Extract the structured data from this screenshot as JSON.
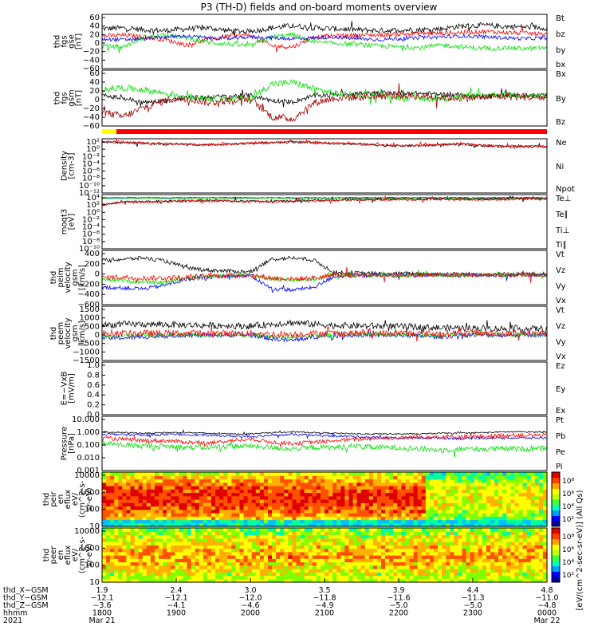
{
  "title": "P3 (TH-D) fields and on-board moments overview",
  "colors": {
    "black": "#000000",
    "red": "#ff0000",
    "green": "#00e000",
    "blue": "#0000ff",
    "darkred": "#a00000",
    "yellow": "#ffff00"
  },
  "chart_data": [
    {
      "id": "fgs_gse",
      "type": "line",
      "ylabel": [
        "thd",
        "fgs",
        "gse",
        "[nT]"
      ],
      "ticks": [
        "60",
        "40",
        "20",
        "0",
        "−20",
        "−40",
        "−60"
      ],
      "ylim": [
        -60,
        60
      ],
      "legend": [
        {
          "label": "Bt",
          "color": "black"
        },
        {
          "label": "bz",
          "color": "red"
        },
        {
          "label": "by",
          "color": "green"
        },
        {
          "label": "bx",
          "color": "blue"
        }
      ],
      "series": [
        {
          "color": "black",
          "base": [
            28,
            30,
            26,
            24,
            28,
            30,
            24,
            22,
            30,
            35,
            30,
            28,
            26,
            24,
            25,
            26,
            28,
            34,
            36,
            33,
            32,
            30
          ],
          "noise": 6
        },
        {
          "color": "red",
          "base": [
            12,
            14,
            10,
            4,
            -8,
            5,
            12,
            14,
            -10,
            -12,
            10,
            12,
            14,
            14,
            16,
            18,
            18,
            20,
            22,
            20,
            18,
            16
          ],
          "noise": 5
        },
        {
          "color": "green",
          "base": [
            -10,
            -12,
            10,
            14,
            8,
            -2,
            -6,
            -10,
            10,
            15,
            -2,
            -4,
            -6,
            -10,
            -12,
            -14,
            -8,
            -12,
            -16,
            -14,
            -16,
            -14
          ],
          "noise": 5
        },
        {
          "color": "blue",
          "base": [
            5,
            4,
            6,
            10,
            12,
            8,
            6,
            10,
            8,
            6,
            8,
            10,
            6,
            4,
            6,
            8,
            10,
            12,
            10,
            8,
            6,
            8
          ],
          "noise": 4
        }
      ]
    },
    {
      "id": "fgs_gsm",
      "type": "line",
      "ylabel": [
        "thd",
        "fgs",
        "gsm",
        "[nT]"
      ],
      "ticks": [
        "60",
        "40",
        "20",
        "0",
        "−20",
        "−40",
        "−60"
      ],
      "ylim": [
        -60,
        60
      ],
      "legend": [
        {
          "label": "Bx",
          "color": "black"
        },
        {
          "label": "By",
          "color": "darkred"
        },
        {
          "label": "Bz",
          "color": "green"
        }
      ],
      "series": [
        {
          "color": "black",
          "base": [
            5,
            0,
            -10,
            -5,
            0,
            2,
            4,
            6,
            -5,
            -8,
            5,
            8,
            10,
            10,
            12,
            10,
            8,
            6,
            4,
            6,
            6,
            4
          ],
          "noise": 5
        },
        {
          "color": "green",
          "base": [
            20,
            22,
            18,
            10,
            4,
            0,
            -2,
            0,
            30,
            34,
            20,
            10,
            6,
            4,
            2,
            0,
            -2,
            4,
            6,
            8,
            6,
            4
          ],
          "noise": 7
        },
        {
          "color": "darkred",
          "base": [
            -30,
            -40,
            -20,
            -5,
            0,
            -10,
            -5,
            -2,
            -40,
            -45,
            -10,
            0,
            2,
            4,
            6,
            4,
            2,
            0,
            2,
            4,
            2,
            0
          ],
          "noise": 8
        }
      ]
    },
    {
      "id": "density",
      "type": "line",
      "log": true,
      "ylabel": [
        "Density",
        "[cm-3]"
      ],
      "ticks": [
        "10²",
        "10⁰",
        "10⁻²",
        "10⁻⁴",
        "10⁻⁶",
        "10⁻⁸",
        "10⁻¹⁰",
        "10⁻¹²"
      ],
      "ylim": [
        -12,
        2
      ],
      "legend": [
        {
          "label": "Ne",
          "color": "red"
        },
        {
          "label": "Ni",
          "color": "black"
        },
        {
          "label": "Npot",
          "color": "blue"
        }
      ],
      "series": [
        {
          "color": "black",
          "base": [
            1.2,
            1.0,
            0.8,
            0.6,
            0.5,
            0.4,
            0.6,
            0.8,
            1.0,
            1.2,
            1.0,
            0.8,
            0.6,
            0.4,
            0.2,
            0.2,
            0.4,
            0.6,
            0.2,
            0.0,
            0.0,
            0.0
          ],
          "noise": 0.3
        },
        {
          "color": "red",
          "base": [
            1.3,
            1.1,
            0.9,
            0.7,
            0.6,
            0.5,
            0.7,
            0.9,
            1.1,
            1.3,
            1.1,
            0.9,
            0.7,
            0.5,
            0.3,
            0.3,
            0.5,
            0.7,
            0.3,
            0.1,
            0.1,
            0.1
          ],
          "noise": 0.3
        }
      ]
    },
    {
      "id": "temp",
      "type": "line",
      "log": true,
      "ylabel": [
        "moqt3",
        "[eV]"
      ],
      "ticks": [
        "10⁴",
        "10²",
        "10⁰",
        "10⁻²",
        "10⁻⁴",
        "10⁻⁶",
        "10⁻⁸",
        "10⁻¹⁰"
      ],
      "ylim": [
        -10,
        4
      ],
      "legend": [
        {
          "label": "Te⊥",
          "color": "red"
        },
        {
          "label": "Te∥",
          "color": "black"
        },
        {
          "label": "Ti⊥",
          "color": "blue"
        },
        {
          "label": "Ti∥",
          "color": "green"
        }
      ],
      "series": [
        {
          "color": "blue",
          "base": [
            3.2,
            3.2,
            3.2,
            3.2,
            3.2,
            3.2,
            3.2,
            3.2,
            3.2,
            3.2,
            3.2,
            3.2,
            3.2,
            3.2,
            3.2,
            3.2,
            3.2,
            3.2,
            3.2,
            3.2,
            3.2,
            3.2
          ],
          "noise": 0.1
        },
        {
          "color": "green",
          "base": [
            3.0,
            3.0,
            3.1,
            3.0,
            3.0,
            3.1,
            3.0,
            3.0,
            3.1,
            3.0,
            3.0,
            3.1,
            3.0,
            3.0,
            3.1,
            3.0,
            3.0,
            3.1,
            3.0,
            3.0,
            3.1,
            3.0
          ],
          "noise": 0.1
        },
        {
          "color": "black",
          "base": [
            1.4,
            2.2,
            2.2,
            2.3,
            2.4,
            2.5,
            2.4,
            2.3,
            2.2,
            2.4,
            2.5,
            2.6,
            2.7,
            2.8,
            2.8,
            2.8,
            2.9,
            2.8,
            2.8,
            2.9,
            3.0,
            3.0
          ],
          "noise": 0.3
        },
        {
          "color": "red",
          "base": [
            1.3,
            2.0,
            2.1,
            2.2,
            2.3,
            2.4,
            2.3,
            2.2,
            2.1,
            2.3,
            2.4,
            2.5,
            2.6,
            2.7,
            2.7,
            2.7,
            2.8,
            2.7,
            2.7,
            2.8,
            2.9,
            2.9
          ],
          "noise": 0.3
        }
      ]
    },
    {
      "id": "peim_vel",
      "type": "line",
      "ylabel": [
        "thd",
        "peim",
        "velocity",
        "gsm",
        "[km/s]"
      ],
      "ticks": [
        "400",
        "200",
        "0",
        "−200",
        "−400",
        "−600"
      ],
      "ylim": [
        -600,
        500
      ],
      "legend": [
        {
          "label": "Vt",
          "color": "black"
        },
        {
          "label": "Vz",
          "color": "red"
        },
        {
          "label": "Vy",
          "color": "green"
        },
        {
          "label": "Vx",
          "color": "blue"
        }
      ],
      "series": [
        {
          "color": "black",
          "base": [
            300,
            320,
            350,
            280,
            150,
            100,
            80,
            60,
            320,
            350,
            300,
            50,
            40,
            30,
            30,
            30,
            20,
            20,
            20,
            20,
            20,
            20
          ],
          "noise": 40
        },
        {
          "color": "blue",
          "base": [
            -250,
            -260,
            -280,
            -200,
            -80,
            -40,
            -20,
            -10,
            -280,
            -300,
            -250,
            -20,
            -10,
            0,
            0,
            0,
            0,
            0,
            0,
            0,
            0,
            0
          ],
          "noise": 40
        },
        {
          "color": "green",
          "base": [
            -100,
            -110,
            -150,
            -150,
            -50,
            -20,
            -10,
            0,
            -80,
            -100,
            -80,
            0,
            0,
            0,
            -10,
            0,
            0,
            0,
            0,
            0,
            0,
            0
          ],
          "noise": 40
        },
        {
          "color": "red",
          "base": [
            -50,
            -40,
            -60,
            -60,
            -40,
            -20,
            -10,
            0,
            -60,
            -80,
            -60,
            0,
            0,
            0,
            0,
            0,
            0,
            0,
            0,
            0,
            0,
            0
          ],
          "noise": 50
        }
      ]
    },
    {
      "id": "peem_vel",
      "type": "line",
      "ylabel": [
        "thd",
        "peem",
        "velocity",
        "gsm",
        "[km/s]"
      ],
      "ticks": [
        "1500",
        "1000",
        "500",
        "0",
        "−500",
        "−1000",
        "−1500"
      ],
      "ylim": [
        -1500,
        1500
      ],
      "legend": [
        {
          "label": "Vt",
          "color": "black"
        },
        {
          "label": "Vz",
          "color": "red"
        },
        {
          "label": "Vy",
          "color": "green"
        },
        {
          "label": "Vx",
          "color": "blue"
        }
      ],
      "series": [
        {
          "color": "black",
          "base": [
            450,
            500,
            500,
            480,
            460,
            440,
            420,
            400,
            500,
            600,
            500,
            450,
            420,
            400,
            380,
            350,
            300,
            300,
            280,
            250,
            250,
            250
          ],
          "noise": 180
        },
        {
          "color": "blue",
          "base": [
            -250,
            -250,
            -200,
            -150,
            -100,
            -100,
            -100,
            -100,
            -300,
            -400,
            -200,
            -150,
            -100,
            -100,
            -100,
            -150,
            -200,
            -100,
            -100,
            -100,
            -80,
            -80
          ],
          "noise": 120
        },
        {
          "color": "green",
          "base": [
            -150,
            -150,
            -100,
            -100,
            -80,
            -80,
            -60,
            -60,
            -150,
            -200,
            -120,
            -80,
            -60,
            -60,
            -60,
            -80,
            -100,
            -60,
            -60,
            -60,
            -50,
            -50
          ],
          "noise": 120
        },
        {
          "color": "red",
          "base": [
            0,
            0,
            0,
            0,
            0,
            0,
            0,
            0,
            -50,
            -50,
            0,
            0,
            0,
            0,
            0,
            0,
            0,
            0,
            0,
            0,
            0,
            0
          ],
          "noise": 180
        }
      ]
    },
    {
      "id": "efield",
      "type": "line",
      "ylabel": [
        "E=−VxB",
        "[mV/m]"
      ],
      "ticks": [
        "1.0",
        "0.8",
        "0.6",
        "0.4",
        "0.2",
        "0.0"
      ],
      "ylim": [
        0,
        1
      ],
      "legend": [
        {
          "label": "Ez",
          "color": "red"
        },
        {
          "label": "Ey",
          "color": "green"
        },
        {
          "label": "Ex",
          "color": "blue"
        }
      ],
      "series": []
    },
    {
      "id": "pressure",
      "type": "line",
      "log": true,
      "ylabel": [
        "Pressure",
        "[nPa]"
      ],
      "ticks": [
        "10.000",
        "1.000",
        "0.100",
        "0.010",
        "0.001"
      ],
      "ylim": [
        -3,
        1
      ],
      "legend": [
        {
          "label": "Pt",
          "color": "black"
        },
        {
          "label": "Pb",
          "color": "red"
        },
        {
          "label": "Pe",
          "color": "green"
        },
        {
          "label": "Pi",
          "color": "blue"
        }
      ],
      "series": [
        {
          "color": "black",
          "base": [
            -0.15,
            -0.2,
            -0.25,
            -0.2,
            -0.2,
            -0.25,
            -0.3,
            -0.3,
            -0.2,
            -0.15,
            -0.2,
            -0.25,
            -0.3,
            -0.3,
            -0.3,
            -0.3,
            -0.25,
            -0.25,
            -0.2,
            -0.15,
            -0.15,
            -0.15
          ],
          "noise": 0.05
        },
        {
          "color": "blue",
          "base": [
            -0.3,
            -0.35,
            -0.4,
            -0.35,
            -0.35,
            -0.4,
            -0.45,
            -0.5,
            -0.4,
            -0.35,
            -0.4,
            -0.45,
            -0.5,
            -0.55,
            -0.6,
            -0.6,
            -0.6,
            -0.65,
            -0.6,
            -0.6,
            -0.6,
            -0.6
          ],
          "noise": 0.08
        },
        {
          "color": "red",
          "base": [
            -0.6,
            -0.7,
            -0.8,
            -0.8,
            -0.9,
            -1.0,
            -0.8,
            -0.7,
            -0.9,
            -1.0,
            -0.9,
            -0.8,
            -0.7,
            -0.6,
            -0.6,
            -0.5,
            -0.5,
            -0.5,
            -0.5,
            -0.4,
            -0.4,
            -0.4
          ],
          "noise": 0.15
        },
        {
          "color": "green",
          "base": [
            -1.0,
            -1.1,
            -1.2,
            -1.2,
            -1.3,
            -1.3,
            -1.2,
            -1.2,
            -1.3,
            -1.4,
            -1.3,
            -1.3,
            -1.2,
            -1.3,
            -1.3,
            -1.4,
            -1.5,
            -1.4,
            -1.4,
            -1.4,
            -1.4,
            -1.4
          ],
          "noise": 0.2
        }
      ]
    },
    {
      "id": "peir_eflux",
      "type": "heatmap",
      "ylabel": [
        "thd",
        "peir",
        "en",
        "eflux",
        "eV/",
        "(cm^2-s-",
        "sr-eV)"
      ],
      "ticks": [
        "10000",
        "1000",
        "100",
        "10"
      ],
      "ylim": [
        1,
        4.2
      ],
      "colorbar": {
        "ticks": [
          "10⁸",
          "10⁶",
          "10⁴",
          "10²"
        ],
        "label": "[eV/(cm^2-sec-sr-eV)] (All Qs)"
      }
    },
    {
      "id": "peer_eflux",
      "type": "heatmap",
      "ylabel": [
        "thd",
        "peer",
        "en",
        "eflux",
        "eV/",
        "(cm^2-s-",
        "sr-eV)"
      ],
      "ticks": [
        "10000",
        "1000",
        "100",
        "10"
      ],
      "ylim": [
        1,
        4.2
      ],
      "colorbar": {
        "ticks": [
          "10⁸",
          "10⁶",
          "10⁴",
          "10²"
        ],
        "label": "[eV/(cm^2-sec-sr-eV)] (All Qs)"
      }
    }
  ],
  "x_axis": {
    "row_labels": [
      "thd_X−GSM",
      "thd_Y−GSM",
      "thd_Z−GSM",
      "hhmm",
      "2021"
    ],
    "columns": [
      [
        "1.9",
        "−12.1",
        "−3.6",
        "1800",
        "Mar 21"
      ],
      [
        "2.4",
        "−12.1",
        "−4.1",
        "1900",
        ""
      ],
      [
        "3.0",
        "−12.0",
        "−4.6",
        "2000",
        ""
      ],
      [
        "3.5",
        "−11.8",
        "−4.9",
        "2100",
        ""
      ],
      [
        "3.9",
        "−11.6",
        "−5.0",
        "2200",
        ""
      ],
      [
        "4.4",
        "−11.3",
        "−5.0",
        "2300",
        ""
      ],
      [
        "4.8",
        "−11.0",
        "−4.8",
        "0000",
        "Mar 22"
      ]
    ]
  }
}
